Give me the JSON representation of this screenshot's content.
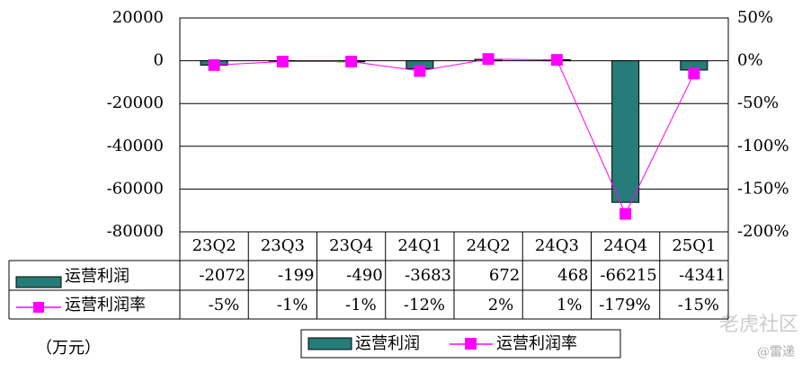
{
  "chart_data": {
    "type": "bar",
    "categories": [
      "23Q2",
      "23Q3",
      "23Q4",
      "24Q1",
      "24Q2",
      "24Q3",
      "24Q4",
      "25Q1"
    ],
    "series": [
      {
        "name": "运营利润",
        "type": "bar",
        "color": "#267c78",
        "values": [
          -2072,
          -199,
          -490,
          -3683,
          672,
          468,
          -66215,
          -4341
        ]
      },
      {
        "name": "运营利润率",
        "type": "line",
        "axis": "y2",
        "color": "#ff00ff",
        "values": [
          -5,
          -1,
          -1,
          -12,
          2,
          1,
          -179,
          -15
        ],
        "value_labels": [
          "-5%",
          "-1%",
          "-1%",
          "-12%",
          "2%",
          "1%",
          "-179%",
          "-15%"
        ]
      }
    ],
    "ylim": [
      -80000,
      20000
    ],
    "yticks": [
      20000,
      0,
      -20000,
      -40000,
      -60000,
      -80000
    ],
    "y2lim": [
      -200,
      50
    ],
    "y2ticks": [
      {
        "value": 50,
        "label": "50%"
      },
      {
        "value": 0,
        "label": "0%"
      },
      {
        "value": -50,
        "label": "-50%"
      },
      {
        "value": -100,
        "label": "-100%"
      },
      {
        "value": -150,
        "label": "-150%"
      },
      {
        "value": -200,
        "label": "-200%"
      }
    ],
    "grid": true,
    "unit": "（万元）",
    "watermark": "老虎社区",
    "credit": "@雷递"
  }
}
